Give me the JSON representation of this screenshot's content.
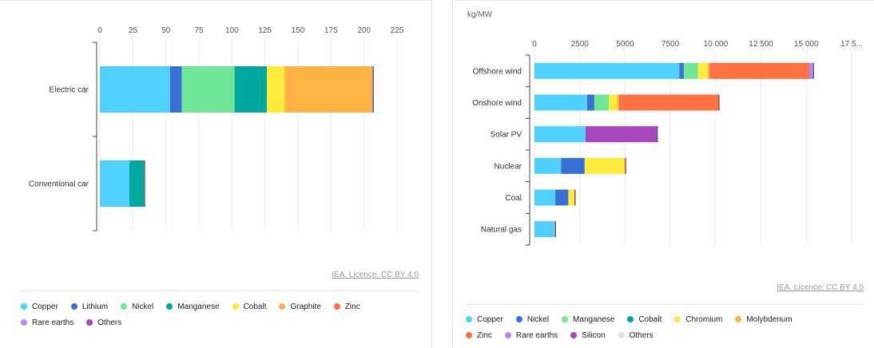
{
  "chart_data": [
    {
      "type": "bar",
      "orientation": "horizontal",
      "stacked": true,
      "categories": [
        "Electric car",
        "Conventional car"
      ],
      "xlim": [
        0,
        225
      ],
      "xticks": [
        0,
        25,
        50,
        75,
        100,
        125,
        150,
        175,
        200,
        225
      ],
      "xtick_labels": [
        "0",
        "25",
        "50",
        "75",
        "100",
        "125",
        "150",
        "175",
        "200",
        "225"
      ],
      "grid": true,
      "legend_position": "bottom",
      "series": [
        {
          "name": "Copper",
          "color": "#4fd0fd",
          "values": [
            53.2,
            22.3
          ]
        },
        {
          "name": "Lithium",
          "color": "#3a6fd8",
          "values": [
            8.9,
            0
          ]
        },
        {
          "name": "Nickel",
          "color": "#6ee897",
          "values": [
            39.9,
            0
          ]
        },
        {
          "name": "Manganese",
          "color": "#00a99d",
          "values": [
            24.5,
            11.2
          ]
        },
        {
          "name": "Cobalt",
          "color": "#ffeb3b",
          "values": [
            13.3,
            0
          ]
        },
        {
          "name": "Graphite",
          "color": "#ffb344",
          "values": [
            66.3,
            0
          ]
        },
        {
          "name": "Zinc",
          "color": "#ff7043",
          "values": [
            0.1,
            0.1
          ]
        },
        {
          "name": "Rare earths",
          "color": "#b388ff",
          "values": [
            0.5,
            0
          ]
        },
        {
          "name": "Others",
          "color": "#ab47bc",
          "values": [
            0.3,
            0.3
          ]
        }
      ],
      "licence": "IEA. Licence: CC BY 4.0"
    },
    {
      "type": "bar",
      "orientation": "horizontal",
      "stacked": true,
      "unit_label": "kg/MW",
      "categories": [
        "Offshore wind",
        "Onshore wind",
        "Solar PV",
        "Nuclear",
        "Coal",
        "Natural gas"
      ],
      "xlim": [
        0,
        17500
      ],
      "xticks": [
        0,
        2500,
        5000,
        7500,
        10000,
        12500,
        15000,
        17500
      ],
      "xtick_labels": [
        "0",
        "2500",
        "5000",
        "7500",
        "10 000",
        "12 500",
        "15 000",
        "17 5..."
      ],
      "grid": true,
      "legend_position": "bottom",
      "series": [
        {
          "name": "Copper",
          "color": "#4fd0fd",
          "values": [
            8000,
            2900,
            2820,
            1470,
            1150,
            1100
          ]
        },
        {
          "name": "Nickel",
          "color": "#3a6fd8",
          "values": [
            240,
            400,
            0,
            1300,
            720,
            16
          ]
        },
        {
          "name": "Manganese",
          "color": "#6ee897",
          "values": [
            790,
            800,
            0,
            0,
            0,
            0
          ]
        },
        {
          "name": "Cobalt",
          "color": "#00a99d",
          "values": [
            0,
            0,
            0,
            0,
            0,
            0
          ]
        },
        {
          "name": "Chromium",
          "color": "#ffeb3b",
          "values": [
            525,
            470,
            0,
            2190,
            310,
            48
          ]
        },
        {
          "name": "Molybdenum",
          "color": "#ffb344",
          "values": [
            109,
            99,
            0,
            70,
            66,
            0
          ]
        },
        {
          "name": "Zinc",
          "color": "#ff7043",
          "values": [
            5500,
            5500,
            0,
            0,
            0,
            0
          ]
        },
        {
          "name": "Rare earths",
          "color": "#b388ff",
          "values": [
            239,
            14,
            0,
            0,
            0,
            0
          ]
        },
        {
          "name": "Silicon",
          "color": "#ab47bc",
          "values": [
            0,
            0,
            3960,
            0,
            0,
            0
          ]
        },
        {
          "name": "Others",
          "color": "#e0e0e0",
          "values": [
            0,
            0,
            0,
            0,
            0,
            0
          ]
        }
      ],
      "licence": "IEA. Licence: CC BY 4.0"
    }
  ]
}
